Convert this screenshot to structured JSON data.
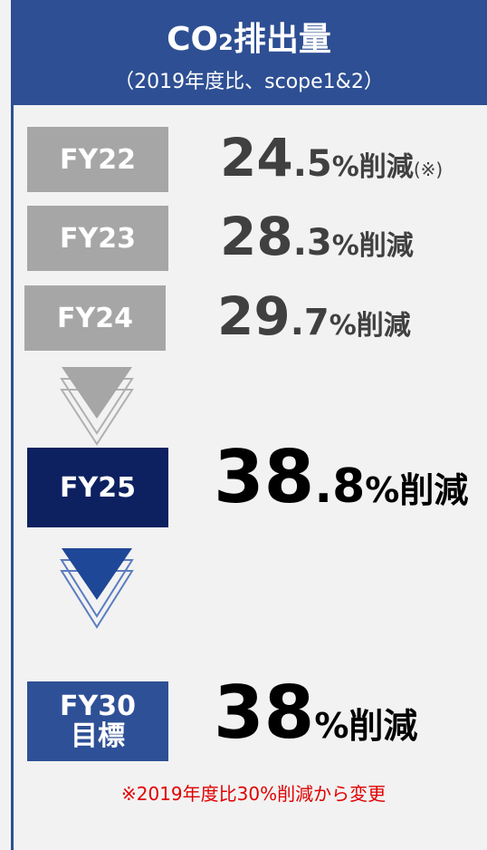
{
  "header": {
    "title": "CO",
    "title_sub": "2",
    "title_rest": "排出量",
    "subtitle": "（2019年度比、scope1&2）"
  },
  "rows": [
    {
      "label": "FY22",
      "int": "24",
      "dec": ".5",
      "unit": "%削減",
      "note": "(※)"
    },
    {
      "label": "FY23",
      "int": "28",
      "dec": ".3",
      "unit": "%削減"
    },
    {
      "label": "FY24",
      "int": "29",
      "dec": ".7",
      "unit": "%削減"
    },
    {
      "label": "FY25",
      "int": "38",
      "dec": ".8",
      "unit": "%削減"
    }
  ],
  "target": {
    "label": "FY30",
    "label2": "目標",
    "int": "38",
    "unit": "%削減"
  },
  "footnote": "※2019年度比30%削減から変更"
}
